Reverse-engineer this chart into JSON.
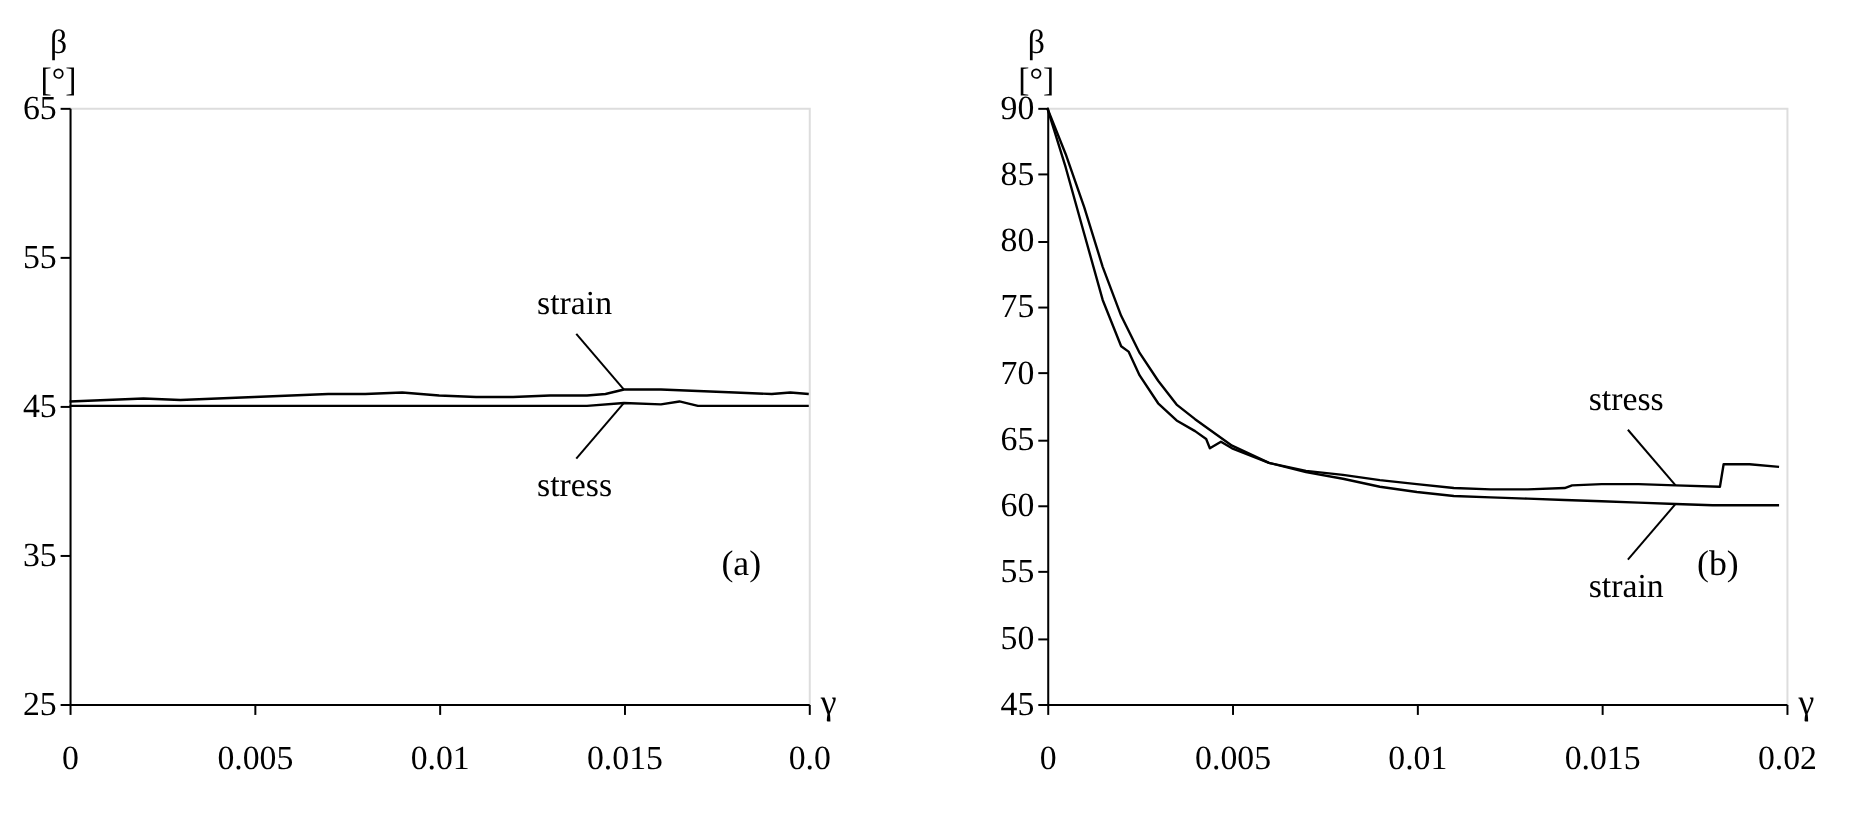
{
  "chart_data": [
    {
      "type": "line",
      "xlabel": "γ",
      "ylabel": "β [°]",
      "xlim": [
        0,
        0.02
      ],
      "ylim": [
        25,
        65
      ],
      "xticks": [
        0,
        0.005,
        0.01,
        0.015,
        {
          "value": 0.02,
          "label": "0.0"
        }
      ],
      "yticks": [
        25,
        35,
        45,
        55,
        65
      ],
      "grid": false,
      "marker": "none",
      "line_style": "solid",
      "series": [
        {
          "name": "strain",
          "color": "#000000",
          "x": [
            0,
            0.001,
            0.002,
            0.003,
            0.004,
            0.005,
            0.006,
            0.007,
            0.008,
            0.009,
            0.01,
            0.011,
            0.012,
            0.013,
            0.014,
            0.0145,
            0.015,
            0.016,
            0.017,
            0.018,
            0.019,
            0.0195,
            0.02
          ],
          "values": [
            45.3,
            45.4,
            45.5,
            45.4,
            45.5,
            45.6,
            45.7,
            45.8,
            45.8,
            45.9,
            45.7,
            45.6,
            45.6,
            45.7,
            45.7,
            45.8,
            46.1,
            46.1,
            46.0,
            45.9,
            45.8,
            45.9,
            45.8
          ]
        },
        {
          "name": "stress",
          "color": "#000000",
          "x": [
            0,
            0.002,
            0.004,
            0.006,
            0.008,
            0.01,
            0.012,
            0.014,
            0.015,
            0.016,
            0.0165,
            0.017,
            0.018,
            0.02
          ],
          "values": [
            45.0,
            45.0,
            45.0,
            45.0,
            45.0,
            45.0,
            45.0,
            45.0,
            45.2,
            45.1,
            45.3,
            45.0,
            45.0,
            45.0
          ]
        }
      ],
      "annotations": [
        "(a)"
      ]
    },
    {
      "type": "line",
      "xlabel": "γ",
      "ylabel": "β [°]",
      "xlim": [
        0,
        0.02
      ],
      "ylim": [
        45,
        90
      ],
      "xticks": [
        0,
        0.005,
        0.01,
        0.015,
        0.02
      ],
      "yticks": [
        45,
        50,
        55,
        60,
        65,
        70,
        75,
        80,
        85,
        90
      ],
      "grid": false,
      "marker": "none",
      "line_style": "solid",
      "series": [
        {
          "name": "stress",
          "color": "#000000",
          "x": [
            0,
            0.0005,
            0.001,
            0.0015,
            0.002,
            0.0022,
            0.0025,
            0.003,
            0.0035,
            0.004,
            0.0043,
            0.0044,
            0.0047,
            0.005,
            0.006,
            0.007,
            0.008,
            0.009,
            0.01,
            0.011,
            0.012,
            0.013,
            0.014,
            0.0142,
            0.015,
            0.016,
            0.017,
            0.0182,
            0.0183,
            0.019,
            0.0198
          ],
          "values": [
            90,
            85.5,
            80.5,
            75.5,
            72.0,
            71.6,
            69.8,
            67.7,
            66.4,
            65.6,
            65.0,
            64.3,
            64.8,
            64.3,
            63.2,
            62.6,
            62.3,
            61.9,
            61.6,
            61.3,
            61.2,
            61.2,
            61.3,
            61.5,
            61.6,
            61.6,
            61.5,
            61.4,
            63.1,
            63.1,
            62.9
          ]
        },
        {
          "name": "strain",
          "color": "#000000",
          "x": [
            0,
            0.0005,
            0.001,
            0.0015,
            0.002,
            0.0025,
            0.003,
            0.0035,
            0.004,
            0.005,
            0.006,
            0.007,
            0.008,
            0.009,
            0.01,
            0.011,
            0.012,
            0.013,
            0.014,
            0.015,
            0.016,
            0.017,
            0.018,
            0.0198
          ],
          "values": [
            90,
            86.5,
            82.5,
            78.0,
            74.3,
            71.5,
            69.4,
            67.6,
            66.5,
            64.5,
            63.2,
            62.5,
            62.0,
            61.4,
            61.0,
            60.7,
            60.6,
            60.5,
            60.4,
            60.3,
            60.2,
            60.1,
            60.0,
            60.0
          ]
        }
      ],
      "annotations": [
        "(b)"
      ]
    }
  ]
}
